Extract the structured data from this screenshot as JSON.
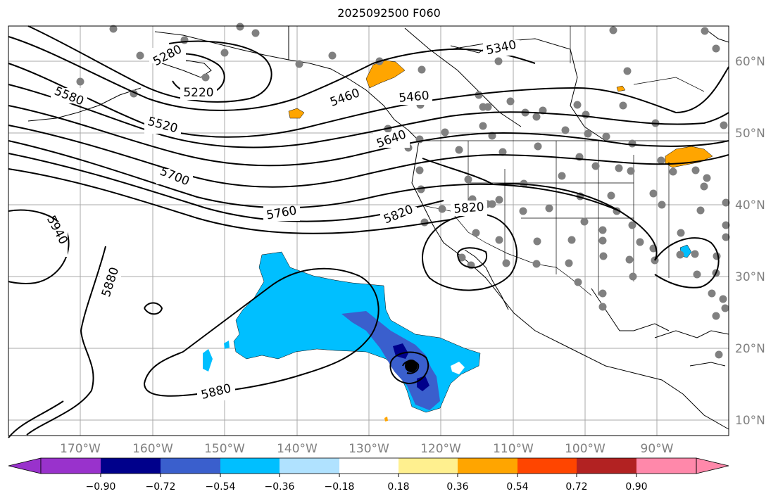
{
  "title": "2025092500 F060",
  "lon_labels": [
    "170°W",
    "160°W",
    "150°W",
    "140°W",
    "130°W",
    "120°W",
    "110°W",
    "100°W",
    "90°W"
  ],
  "lat_labels": [
    "60°N",
    "50°N",
    "40°N",
    "30°N",
    "20°N",
    "10°N"
  ],
  "contour_labels": [
    "5280",
    "5220",
    "5580",
    "5520",
    "5460",
    "5460",
    "5340",
    "5640",
    "5700",
    "5760",
    "5820",
    "5820",
    "5940",
    "5880",
    "5880"
  ],
  "colorbar": {
    "ticks": [
      "−0.90",
      "−0.72",
      "−0.54",
      "−0.36",
      "−0.18",
      "0.18",
      "0.36",
      "0.54",
      "0.72",
      "0.90"
    ],
    "colors": [
      "#9932cc",
      "#00008b",
      "#3a5fcd",
      "#00bfff",
      "#b0e2ff",
      "#ffffff",
      "#fff08f",
      "#ffa500",
      "#ff4500",
      "#b22222",
      "#ff88aa"
    ]
  },
  "colors": {
    "grid": "#a9a9a9",
    "label": "#808080",
    "dots": "#808080"
  }
}
